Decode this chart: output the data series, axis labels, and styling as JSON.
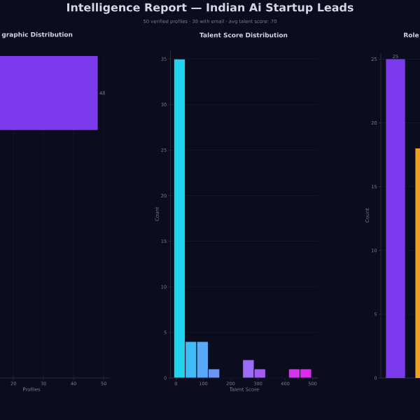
{
  "chart_data": [
    {
      "type": "other",
      "title": "Intelligence Report — Indian Ai Startup Leads",
      "subtitle": "50 verified profiles  ·  38 with email  ·  avg talent score: 70"
    },
    {
      "type": "bar",
      "orientation": "horizontal",
      "title": "graphic Distribution",
      "xlabel": "Profiles",
      "categories": [
        null
      ],
      "values": [
        48
      ],
      "color": "#7c3aed",
      "data_labels": true,
      "xlim": [
        0,
        52
      ],
      "xticks": [
        20,
        30,
        40,
        50
      ],
      "grid": "x"
    },
    {
      "type": "histogram",
      "title": "Talent Score Distribution",
      "xlabel": "Talent Score",
      "ylabel": "Count",
      "bins": [
        -8,
        34,
        76,
        118,
        160,
        202,
        244,
        286,
        328,
        370,
        412,
        454,
        496
      ],
      "values": [
        35,
        4,
        4,
        1,
        0,
        0,
        2,
        1,
        0,
        0,
        1,
        1
      ],
      "colors": [
        "#22d3ee",
        "#3dbcf8",
        "#5aa8f8",
        "#6b95f5",
        "#7c84f3",
        "#8a74f2",
        "#9b6cf7",
        "#a35cf3",
        "#b04ef2",
        "#c440f0",
        "#d633f0",
        "#d92cec"
      ],
      "xlim": [
        -20,
        520
      ],
      "xticks": [
        0,
        100,
        200,
        300,
        400,
        500
      ],
      "ylim": [
        0,
        36
      ],
      "yticks": [
        0,
        5,
        10,
        15,
        20,
        25,
        30,
        35
      ],
      "grid": "y"
    },
    {
      "type": "bar",
      "title": "Role",
      "ylabel": "Count",
      "categories": [
        null,
        null
      ],
      "values": [
        25,
        18
      ],
      "colors": [
        "#7c3aed",
        "#f0a020"
      ],
      "value_labels": [
        "25",
        null
      ],
      "ylim": [
        0,
        25.5
      ],
      "yticks": [
        0,
        5,
        10,
        15,
        20,
        25
      ],
      "grid": "y"
    }
  ]
}
